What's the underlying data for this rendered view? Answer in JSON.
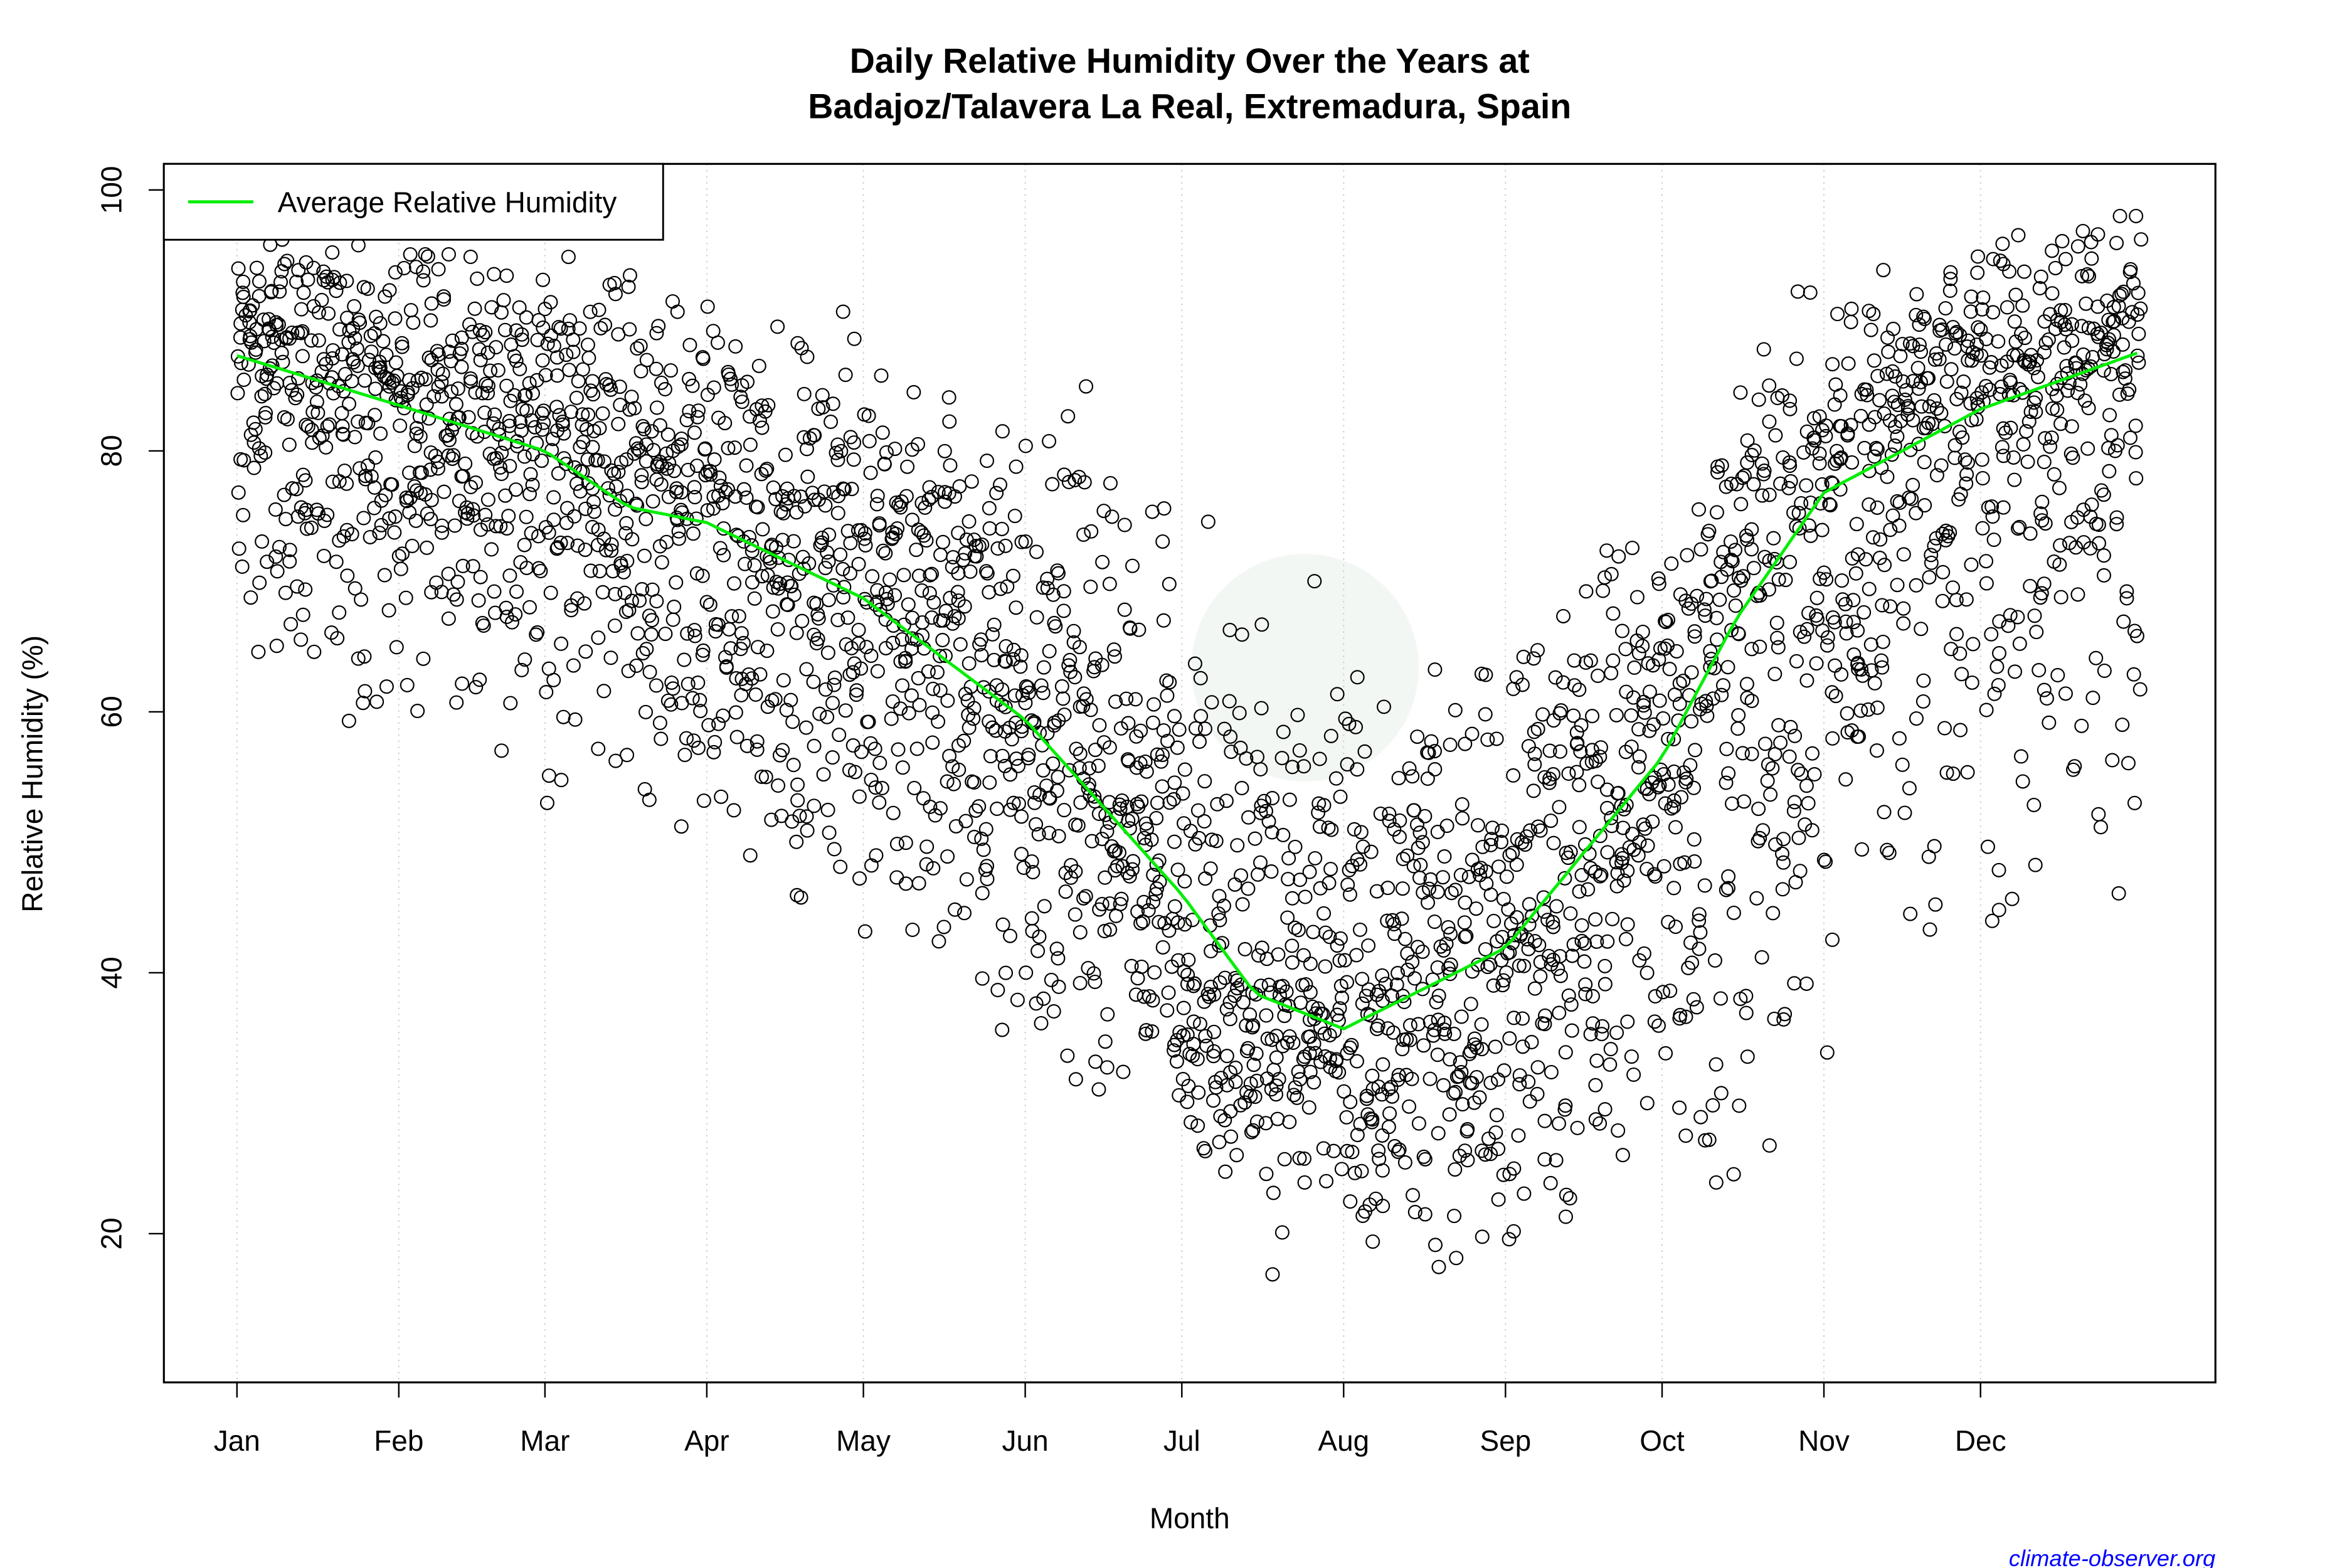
{
  "chart_data": {
    "type": "scatter",
    "title_line1": "Daily Relative Humidity Over the Years at",
    "title_line2": "Badajoz/Talavera La Real, Extremadura, Spain",
    "xlabel": "Month",
    "ylabel": "Relative Humidity  (%)",
    "xlim_day_of_year": [
      -13,
      380
    ],
    "ylim": [
      8.6,
      102
    ],
    "x_ticks": [
      {
        "label": "Jan",
        "day": 1
      },
      {
        "label": "Feb",
        "day": 32
      },
      {
        "label": "Mar",
        "day": 60
      },
      {
        "label": "Apr",
        "day": 91
      },
      {
        "label": "May",
        "day": 121
      },
      {
        "label": "Jun",
        "day": 152
      },
      {
        "label": "Jul",
        "day": 182
      },
      {
        "label": "Aug",
        "day": 213
      },
      {
        "label": "Sep",
        "day": 244
      },
      {
        "label": "Oct",
        "day": 274
      },
      {
        "label": "Nov",
        "day": 305
      },
      {
        "label": "Dec",
        "day": 335
      }
    ],
    "y_ticks": [
      20,
      40,
      60,
      80,
      100
    ],
    "grid": "vertical dotted at month ticks",
    "legend": {
      "placement": "top-left",
      "entries": [
        {
          "label": "Average Relative Humidity",
          "color": "#00ee00"
        }
      ]
    },
    "point_style": {
      "shape": "open circle",
      "color": "#000000"
    },
    "average_series": {
      "name": "Average Relative Humidity",
      "color": "#00ee00",
      "points": [
        {
          "day": 1,
          "value": 87.3
        },
        {
          "day": 32,
          "value": 83.5
        },
        {
          "day": 60,
          "value": 80.0
        },
        {
          "day": 76,
          "value": 75.7
        },
        {
          "day": 91,
          "value": 74.5
        },
        {
          "day": 121,
          "value": 68.7
        },
        {
          "day": 152,
          "value": 59.4
        },
        {
          "day": 182,
          "value": 46.0
        },
        {
          "day": 196,
          "value": 38.4
        },
        {
          "day": 213,
          "value": 35.7
        },
        {
          "day": 244,
          "value": 41.9
        },
        {
          "day": 274,
          "value": 56.5
        },
        {
          "day": 288,
          "value": 67.0
        },
        {
          "day": 305,
          "value": 76.8
        },
        {
          "day": 335,
          "value": 83.2
        },
        {
          "day": 365,
          "value": 87.5
        }
      ]
    },
    "daily_observation_envelope": [
      {
        "month": "Jan",
        "day": 16,
        "low": 60,
        "high": 98
      },
      {
        "month": "Feb",
        "day": 45,
        "low": 55,
        "high": 97
      },
      {
        "month": "Mar",
        "day": 74,
        "low": 50,
        "high": 95
      },
      {
        "month": "Apr",
        "day": 105,
        "low": 45,
        "high": 92
      },
      {
        "month": "May",
        "day": 135,
        "low": 40,
        "high": 89
      },
      {
        "month": "Jun",
        "day": 166,
        "low": 28,
        "high": 84
      },
      {
        "month": "Jul",
        "day": 196,
        "low": 18,
        "high": 72
      },
      {
        "month": "Aug",
        "day": 227,
        "low": 16,
        "high": 63
      },
      {
        "month": "Sep",
        "day": 258,
        "low": 18,
        "high": 72
      },
      {
        "month": "Oct",
        "day": 288,
        "low": 20,
        "high": 88
      },
      {
        "month": "Nov",
        "day": 319,
        "low": 36,
        "high": 96
      },
      {
        "month": "Dec",
        "day": 349,
        "low": 45,
        "high": 98
      }
    ]
  },
  "credit": "climate-observer.org"
}
